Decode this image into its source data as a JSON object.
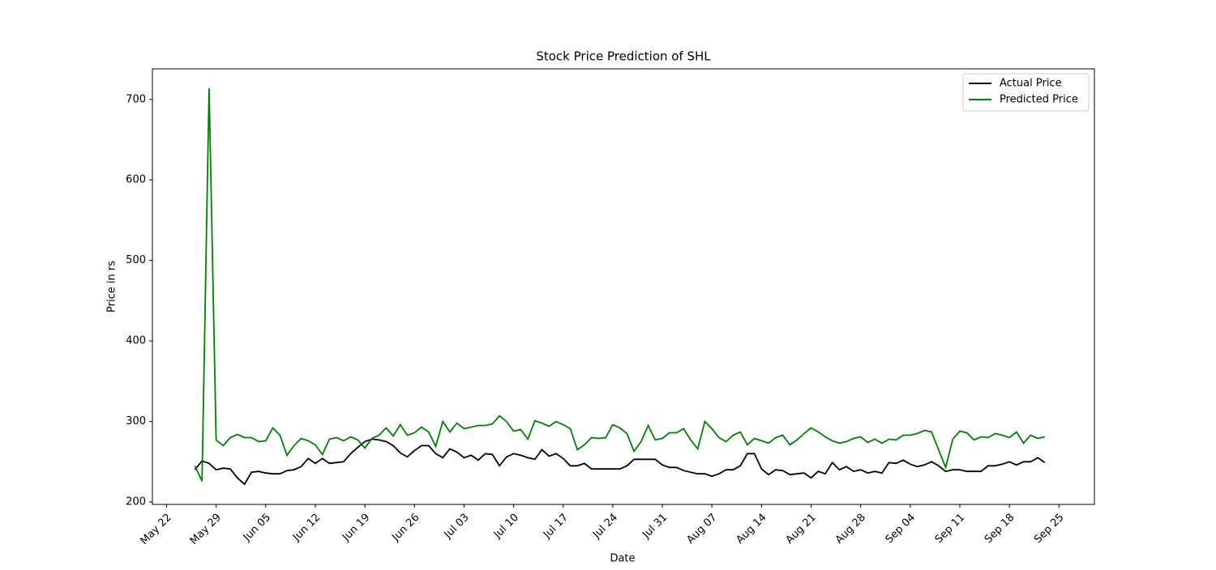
{
  "chart_data": {
    "type": "line",
    "title": "Stock Price Prediction of SHL",
    "xlabel": "Date",
    "ylabel": "Price in rs",
    "x": [
      "May 26",
      "May 27",
      "May 28",
      "May 29",
      "May 30",
      "May 31",
      "Jun 01",
      "Jun 02",
      "Jun 03",
      "Jun 04",
      "Jun 05",
      "Jun 06",
      "Jun 07",
      "Jun 08",
      "Jun 09",
      "Jun 10",
      "Jun 11",
      "Jun 12",
      "Jun 13",
      "Jun 14",
      "Jun 15",
      "Jun 16",
      "Jun 17",
      "Jun 18",
      "Jun 19",
      "Jun 20",
      "Jun 21",
      "Jun 22",
      "Jun 23",
      "Jun 24",
      "Jun 25",
      "Jun 26",
      "Jun 27",
      "Jun 28",
      "Jun 29",
      "Jun 30",
      "Jul 01",
      "Jul 02",
      "Jul 03",
      "Jul 04",
      "Jul 05",
      "Jul 06",
      "Jul 07",
      "Jul 08",
      "Jul 09",
      "Jul 10",
      "Jul 11",
      "Jul 12",
      "Jul 13",
      "Jul 14",
      "Jul 15",
      "Jul 16",
      "Jul 17",
      "Jul 18",
      "Jul 19",
      "Jul 20",
      "Jul 21",
      "Jul 22",
      "Jul 23",
      "Jul 24",
      "Jul 25",
      "Jul 26",
      "Jul 27",
      "Jul 28",
      "Jul 29",
      "Jul 30",
      "Jul 31",
      "Aug 01",
      "Aug 02",
      "Aug 03",
      "Aug 04",
      "Aug 05",
      "Aug 06",
      "Aug 07",
      "Aug 08",
      "Aug 09",
      "Aug 10",
      "Aug 11",
      "Aug 12",
      "Aug 13",
      "Aug 14",
      "Aug 15",
      "Aug 16",
      "Aug 17",
      "Aug 18",
      "Aug 19",
      "Aug 20",
      "Aug 21",
      "Aug 22",
      "Aug 23",
      "Aug 24",
      "Aug 25",
      "Aug 26",
      "Aug 27",
      "Aug 28",
      "Aug 29",
      "Aug 30",
      "Aug 31",
      "Sep 01",
      "Sep 02",
      "Sep 03",
      "Sep 04",
      "Sep 05",
      "Sep 06",
      "Sep 07",
      "Sep 08",
      "Sep 09",
      "Sep 10",
      "Sep 11",
      "Sep 12",
      "Sep 13",
      "Sep 14",
      "Sep 15",
      "Sep 16",
      "Sep 17",
      "Sep 18",
      "Sep 19",
      "Sep 20",
      "Sep 21",
      "Sep 22",
      "Sep 23"
    ],
    "series": [
      {
        "name": "Actual Price",
        "color": "#000000",
        "values": [
          240,
          251,
          248,
          240,
          242,
          241,
          230,
          222,
          237,
          238,
          236,
          235,
          235,
          239,
          240,
          244,
          254,
          248,
          254,
          248,
          249,
          250,
          260,
          268,
          275,
          278,
          277,
          275,
          270,
          261,
          256,
          264,
          270,
          270,
          260,
          255,
          266,
          262,
          255,
          258,
          252,
          260,
          259,
          245,
          256,
          260,
          258,
          255,
          253,
          265,
          257,
          260,
          254,
          245,
          245,
          248,
          241,
          241,
          241,
          241,
          241,
          245,
          253,
          253,
          253,
          253,
          246,
          243,
          243,
          239,
          237,
          235,
          235,
          232,
          235,
          240,
          240,
          245,
          260,
          260,
          241,
          234,
          240,
          239,
          234,
          235,
          236,
          230,
          238,
          235,
          249,
          240,
          244,
          238,
          240,
          236,
          238,
          236,
          249,
          248,
          252,
          247,
          244,
          246,
          250,
          245,
          238,
          240,
          240,
          238,
          238,
          238,
          245,
          245,
          247,
          250,
          246,
          250,
          250,
          255,
          249
        ]
      },
      {
        "name": "Predicted Price",
        "color": "#008000",
        "values": [
          245,
          226,
          714,
          277,
          270,
          280,
          284,
          280,
          280,
          275,
          276,
          292,
          283,
          258,
          270,
          279,
          276,
          271,
          259,
          278,
          280,
          276,
          281,
          277,
          267,
          279,
          283,
          292,
          282,
          296,
          283,
          286,
          293,
          287,
          269,
          300,
          287,
          298,
          291,
          293,
          295,
          295,
          297,
          307,
          300,
          288,
          290,
          278,
          301,
          298,
          294,
          300,
          296,
          291,
          265,
          271,
          280,
          279,
          280,
          296,
          292,
          285,
          263,
          275,
          295,
          277,
          279,
          286,
          286,
          291,
          277,
          266,
          300,
          291,
          280,
          275,
          283,
          287,
          271,
          279,
          276,
          273,
          280,
          283,
          271,
          277,
          285,
          292,
          287,
          281,
          276,
          273,
          275,
          279,
          281,
          274,
          278,
          273,
          278,
          277,
          283,
          283,
          285,
          289,
          287,
          265,
          243,
          278,
          288,
          286,
          277,
          281,
          280,
          285,
          283,
          280,
          287,
          273,
          283,
          279,
          281
        ]
      }
    ],
    "xlim": [
      "May 20",
      "Sep 30"
    ],
    "xticks": [
      "May 22",
      "May 29",
      "Jun 05",
      "Jun 12",
      "Jun 19",
      "Jun 26",
      "Jul 03",
      "Jul 10",
      "Jul 17",
      "Jul 24",
      "Jul 31",
      "Aug 07",
      "Aug 14",
      "Aug 21",
      "Aug 28",
      "Sep 04",
      "Sep 11",
      "Sep 18",
      "Sep 25"
    ],
    "ylim": [
      197,
      738
    ],
    "yticks": [
      200,
      300,
      400,
      500,
      600,
      700
    ],
    "legend": "upper right"
  }
}
